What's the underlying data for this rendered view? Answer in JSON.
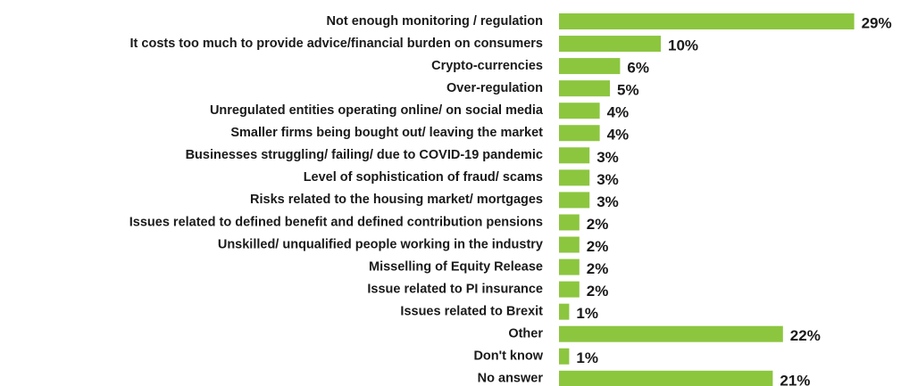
{
  "chart_data": {
    "type": "bar",
    "orientation": "horizontal",
    "categories": [
      "Not enough monitoring / regulation",
      "It costs too much to provide advice/financial burden on consumers",
      "Crypto-currencies",
      "Over-regulation",
      "Unregulated entities operating online/ on social media",
      "Smaller firms being bought out/ leaving the market",
      "Businesses struggling/ failing/ due to COVID-19 pandemic",
      "Level of sophistication of fraud/ scams",
      "Risks related to the housing market/ mortgages",
      "Issues related to defined benefit and defined contribution pensions",
      "Unskilled/ unqualified people working in the industry",
      "Misselling of Equity Release",
      "Issue related to PI insurance",
      "Issues related to Brexit",
      "Other",
      "Don't know",
      "No answer"
    ],
    "values": [
      29,
      10,
      6,
      5,
      4,
      4,
      3,
      3,
      3,
      2,
      2,
      2,
      2,
      1,
      22,
      1,
      21
    ],
    "value_labels": [
      "29%",
      "10%",
      "6%",
      "5%",
      "4%",
      "4%",
      "3%",
      "3%",
      "3%",
      "2%",
      "2%",
      "2%",
      "2%",
      "1%",
      "22%",
      "1%",
      "21%"
    ],
    "color": "#8cc63f"
  }
}
